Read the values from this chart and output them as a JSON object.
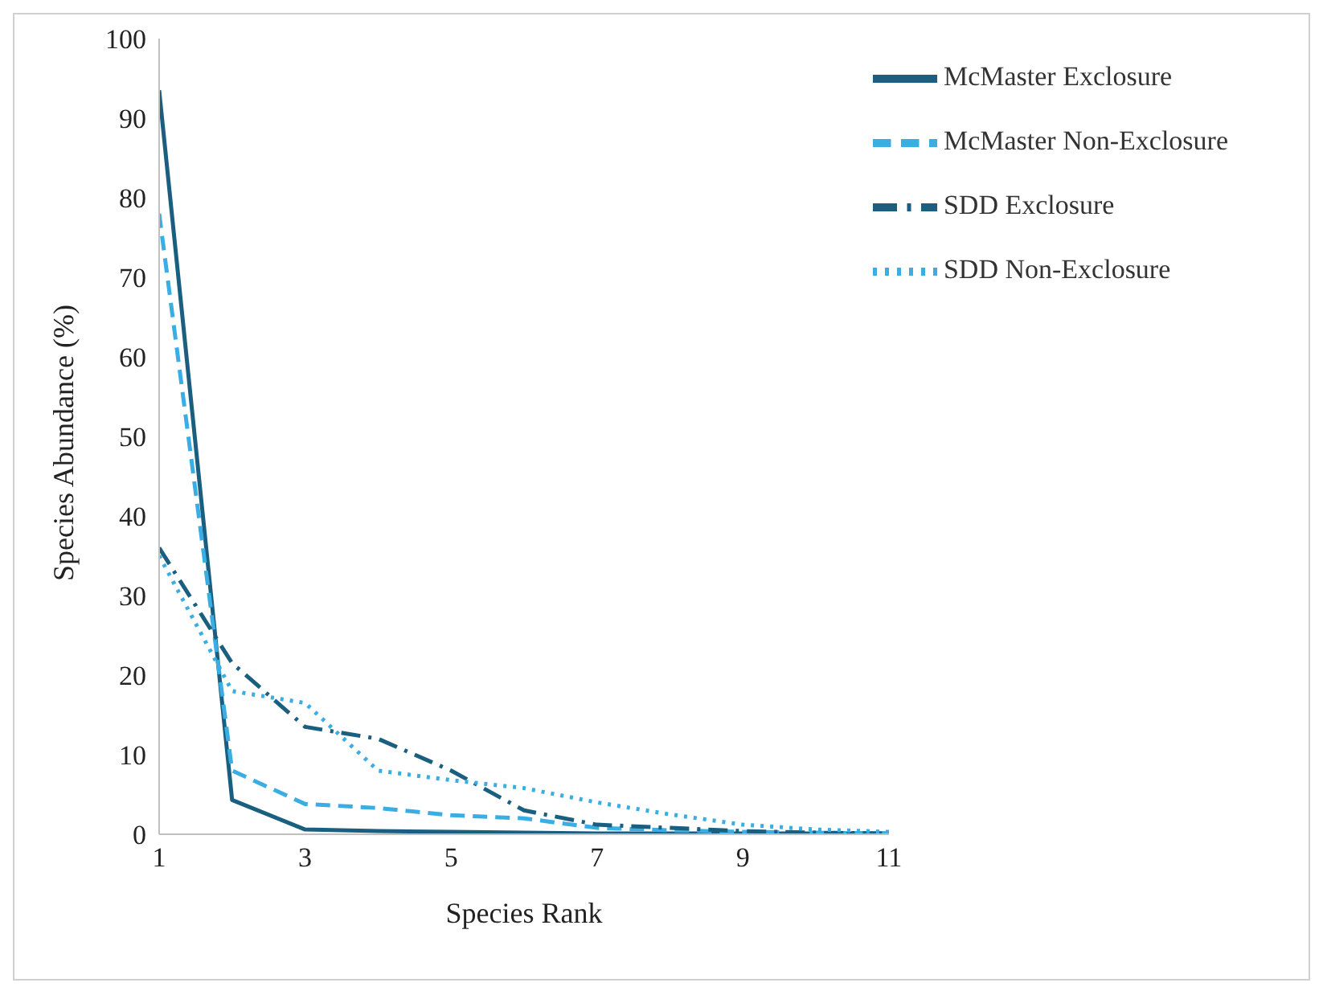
{
  "chart_data": {
    "type": "line",
    "xlabel": "Species Rank",
    "ylabel": "Species Abundance (%)",
    "x": [
      1,
      2,
      3,
      4,
      5,
      6,
      7,
      8,
      9,
      10,
      11
    ],
    "xlim": [
      1,
      11
    ],
    "xticks": [
      1,
      3,
      5,
      7,
      9,
      11
    ],
    "ylim": [
      0,
      100
    ],
    "yticks": [
      0,
      10,
      20,
      30,
      40,
      50,
      60,
      70,
      80,
      90,
      100
    ],
    "grid": false,
    "legend": "top right",
    "marker": "none",
    "series": [
      {
        "name": "McMaster Exclosure",
        "color": "#1b5f80",
        "line_style": "solid",
        "values": [
          93.5,
          4.3,
          0.6,
          0.4,
          0.3,
          0.2,
          0.1,
          0.1,
          0.1,
          0.1,
          0.1
        ]
      },
      {
        "name": "McMaster Non-Exclosure",
        "color": "#3aade2",
        "line_style": "dashed",
        "values": [
          78,
          8,
          3.8,
          3.3,
          2.4,
          2,
          0.8,
          0.5,
          0.3,
          0.2,
          0.1
        ]
      },
      {
        "name": "SDD Exclosure",
        "color": "#1b5f80",
        "line_style": "dashdot",
        "values": [
          36,
          21.5,
          13.5,
          12,
          8,
          3,
          1.2,
          0.8,
          0.4,
          0.2,
          0.1
        ]
      },
      {
        "name": "SDD Non-Exclosure",
        "color": "#3aade2",
        "line_style": "dotted",
        "values": [
          35,
          18,
          16.5,
          8,
          6.8,
          5.8,
          4,
          2.5,
          1.2,
          0.6,
          0.3
        ]
      }
    ]
  }
}
